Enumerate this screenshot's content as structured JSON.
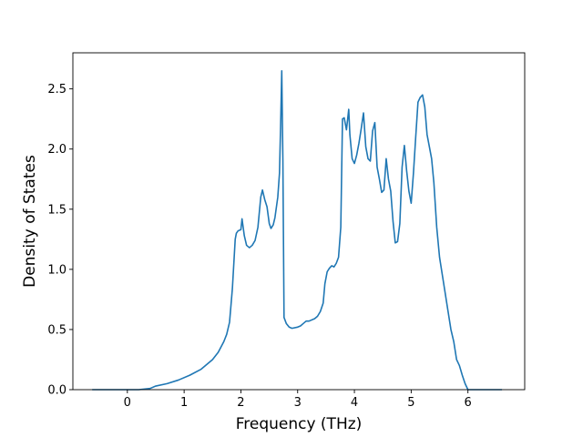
{
  "chart_data": {
    "type": "line",
    "title": "",
    "xlabel": "Frequency (THz)",
    "ylabel": "Density of States",
    "xlim": [
      -0.96,
      7.0
    ],
    "ylim": [
      0.0,
      2.8
    ],
    "xticks": [
      0,
      1,
      2,
      3,
      4,
      5,
      6
    ],
    "yticks": [
      0.0,
      0.5,
      1.0,
      1.5,
      2.0,
      2.5
    ],
    "xtick_labels": [
      "0",
      "1",
      "2",
      "3",
      "4",
      "5",
      "6"
    ],
    "ytick_labels": [
      "0.0",
      "0.5",
      "1.0",
      "1.5",
      "2.0",
      "2.5"
    ],
    "grid": false,
    "legend": false,
    "line_color": "#1f77b4",
    "series": [
      {
        "x": [
          -0.62,
          0.0,
          0.2,
          0.4,
          0.5,
          0.7,
          0.9,
          1.1,
          1.3,
          1.5,
          1.6,
          1.7,
          1.75,
          1.8,
          1.85,
          1.9,
          1.92,
          1.95,
          2.0,
          2.02,
          2.06,
          2.1,
          2.15,
          2.2,
          2.25,
          2.3,
          2.35,
          2.38,
          2.42,
          2.46,
          2.5,
          2.53,
          2.57,
          2.6,
          2.65,
          2.68,
          2.7,
          2.72,
          2.74,
          2.76,
          2.8,
          2.85,
          2.9,
          3.0,
          3.05,
          3.1,
          3.15,
          3.2,
          3.3,
          3.35,
          3.4,
          3.45,
          3.48,
          3.52,
          3.56,
          3.6,
          3.64,
          3.68,
          3.72,
          3.76,
          3.79,
          3.82,
          3.86,
          3.9,
          3.92,
          3.96,
          4.0,
          4.04,
          4.08,
          4.12,
          4.16,
          4.2,
          4.24,
          4.28,
          4.32,
          4.36,
          4.4,
          4.44,
          4.48,
          4.52,
          4.56,
          4.6,
          4.64,
          4.68,
          4.72,
          4.76,
          4.8,
          4.84,
          4.88,
          4.92,
          4.96,
          5.0,
          5.04,
          5.08,
          5.12,
          5.16,
          5.2,
          5.24,
          5.28,
          5.32,
          5.36,
          5.4,
          5.45,
          5.5,
          5.55,
          5.6,
          5.65,
          5.7,
          5.75,
          5.8,
          5.85,
          5.9,
          5.95,
          6.0,
          6.02,
          6.1,
          6.6
        ],
        "y": [
          0.0,
          0.0,
          0.0,
          0.01,
          0.03,
          0.05,
          0.08,
          0.12,
          0.17,
          0.25,
          0.31,
          0.4,
          0.46,
          0.56,
          0.84,
          1.25,
          1.3,
          1.32,
          1.33,
          1.42,
          1.28,
          1.2,
          1.18,
          1.2,
          1.24,
          1.35,
          1.6,
          1.66,
          1.58,
          1.52,
          1.38,
          1.34,
          1.37,
          1.43,
          1.6,
          1.8,
          2.2,
          2.65,
          1.9,
          0.6,
          0.55,
          0.52,
          0.51,
          0.52,
          0.53,
          0.55,
          0.57,
          0.57,
          0.59,
          0.61,
          0.65,
          0.72,
          0.88,
          0.98,
          1.01,
          1.03,
          1.02,
          1.05,
          1.1,
          1.35,
          2.25,
          2.26,
          2.16,
          2.33,
          2.12,
          1.92,
          1.88,
          1.95,
          2.05,
          2.17,
          2.3,
          2.02,
          1.92,
          1.9,
          2.15,
          2.22,
          1.85,
          1.75,
          1.64,
          1.66,
          1.92,
          1.75,
          1.65,
          1.4,
          1.22,
          1.23,
          1.38,
          1.85,
          2.03,
          1.82,
          1.65,
          1.55,
          1.8,
          2.1,
          2.39,
          2.43,
          2.45,
          2.35,
          2.12,
          2.02,
          1.92,
          1.72,
          1.35,
          1.1,
          0.95,
          0.8,
          0.65,
          0.5,
          0.4,
          0.25,
          0.2,
          0.12,
          0.05,
          0.0,
          0.0,
          0.0,
          0.0
        ]
      }
    ]
  }
}
